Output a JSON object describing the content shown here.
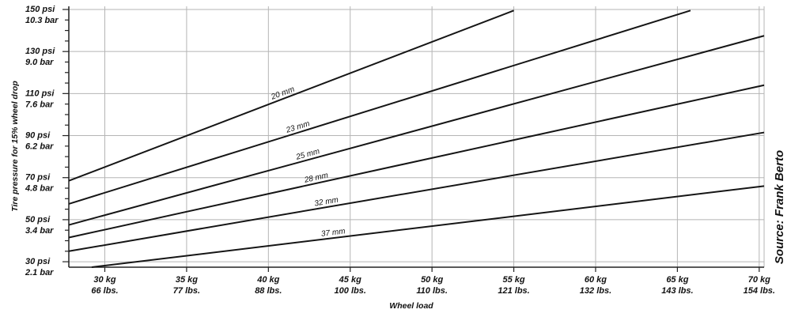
{
  "chart_data": {
    "type": "line",
    "xlabel": "Wheel load",
    "ylabel": "Tire pressure for 15% wheel drop",
    "source": "Source: Frank Berto",
    "xlim": [
      27.8,
      70.3
    ],
    "ylim": [
      27.4,
      151.5
    ],
    "x_ticks": [
      {
        "value": 30,
        "label_kg": "30 kg",
        "label_lbs": "66 lbs."
      },
      {
        "value": 35,
        "label_kg": "35 kg",
        "label_lbs": "77 lbs."
      },
      {
        "value": 40,
        "label_kg": "40 kg",
        "label_lbs": "88 lbs."
      },
      {
        "value": 45,
        "label_kg": "45 kg",
        "label_lbs": "100 lbs."
      },
      {
        "value": 50,
        "label_kg": "50 kg",
        "label_lbs": "110 lbs."
      },
      {
        "value": 55,
        "label_kg": "55 kg",
        "label_lbs": "121 lbs."
      },
      {
        "value": 60,
        "label_kg": "60 kg",
        "label_lbs": "132 lbs."
      },
      {
        "value": 65,
        "label_kg": "65 kg",
        "label_lbs": "143 lbs."
      },
      {
        "value": 70,
        "label_kg": "70 kg",
        "label_lbs": "154 lbs."
      }
    ],
    "y_ticks": [
      {
        "value": 30,
        "label_psi": "30 psi",
        "label_bar": "2.1 bar"
      },
      {
        "value": 50,
        "label_psi": "50 psi",
        "label_bar": "3.4 bar"
      },
      {
        "value": 70,
        "label_psi": "70 psi",
        "label_bar": "4.8 bar"
      },
      {
        "value": 90,
        "label_psi": "90 psi",
        "label_bar": "6.2 bar"
      },
      {
        "value": 110,
        "label_psi": "110 psi",
        "label_bar": "7.6 bar"
      },
      {
        "value": 130,
        "label_psi": "130 psi",
        "label_bar": "9.0 bar"
      },
      {
        "value": 150,
        "label_psi": "150 psi",
        "label_bar": "10.3 bar"
      }
    ],
    "y_minor_step": 5,
    "series": [
      {
        "name": "20 mm",
        "points": [
          [
            27.8,
            68.5
          ],
          [
            55.0,
            149.5
          ]
        ],
        "label_x": 41.0
      },
      {
        "name": "23 mm",
        "points": [
          [
            27.8,
            57.5
          ],
          [
            65.8,
            149.5
          ]
        ],
        "label_x": 41.9
      },
      {
        "name": "25 mm",
        "points": [
          [
            27.8,
            47.5
          ],
          [
            70.3,
            137.5
          ]
        ],
        "label_x": 42.5
      },
      {
        "name": "28 mm",
        "points": [
          [
            27.8,
            41.5
          ],
          [
            70.3,
            114.0
          ]
        ],
        "label_x": 43.0
      },
      {
        "name": "32 mm",
        "points": [
          [
            27.8,
            35.0
          ],
          [
            70.3,
            91.5
          ]
        ],
        "label_x": 43.6
      },
      {
        "name": "37 mm",
        "points": [
          [
            29.2,
            27.4
          ],
          [
            70.3,
            66.0
          ]
        ],
        "label_x": 44.0
      }
    ]
  }
}
